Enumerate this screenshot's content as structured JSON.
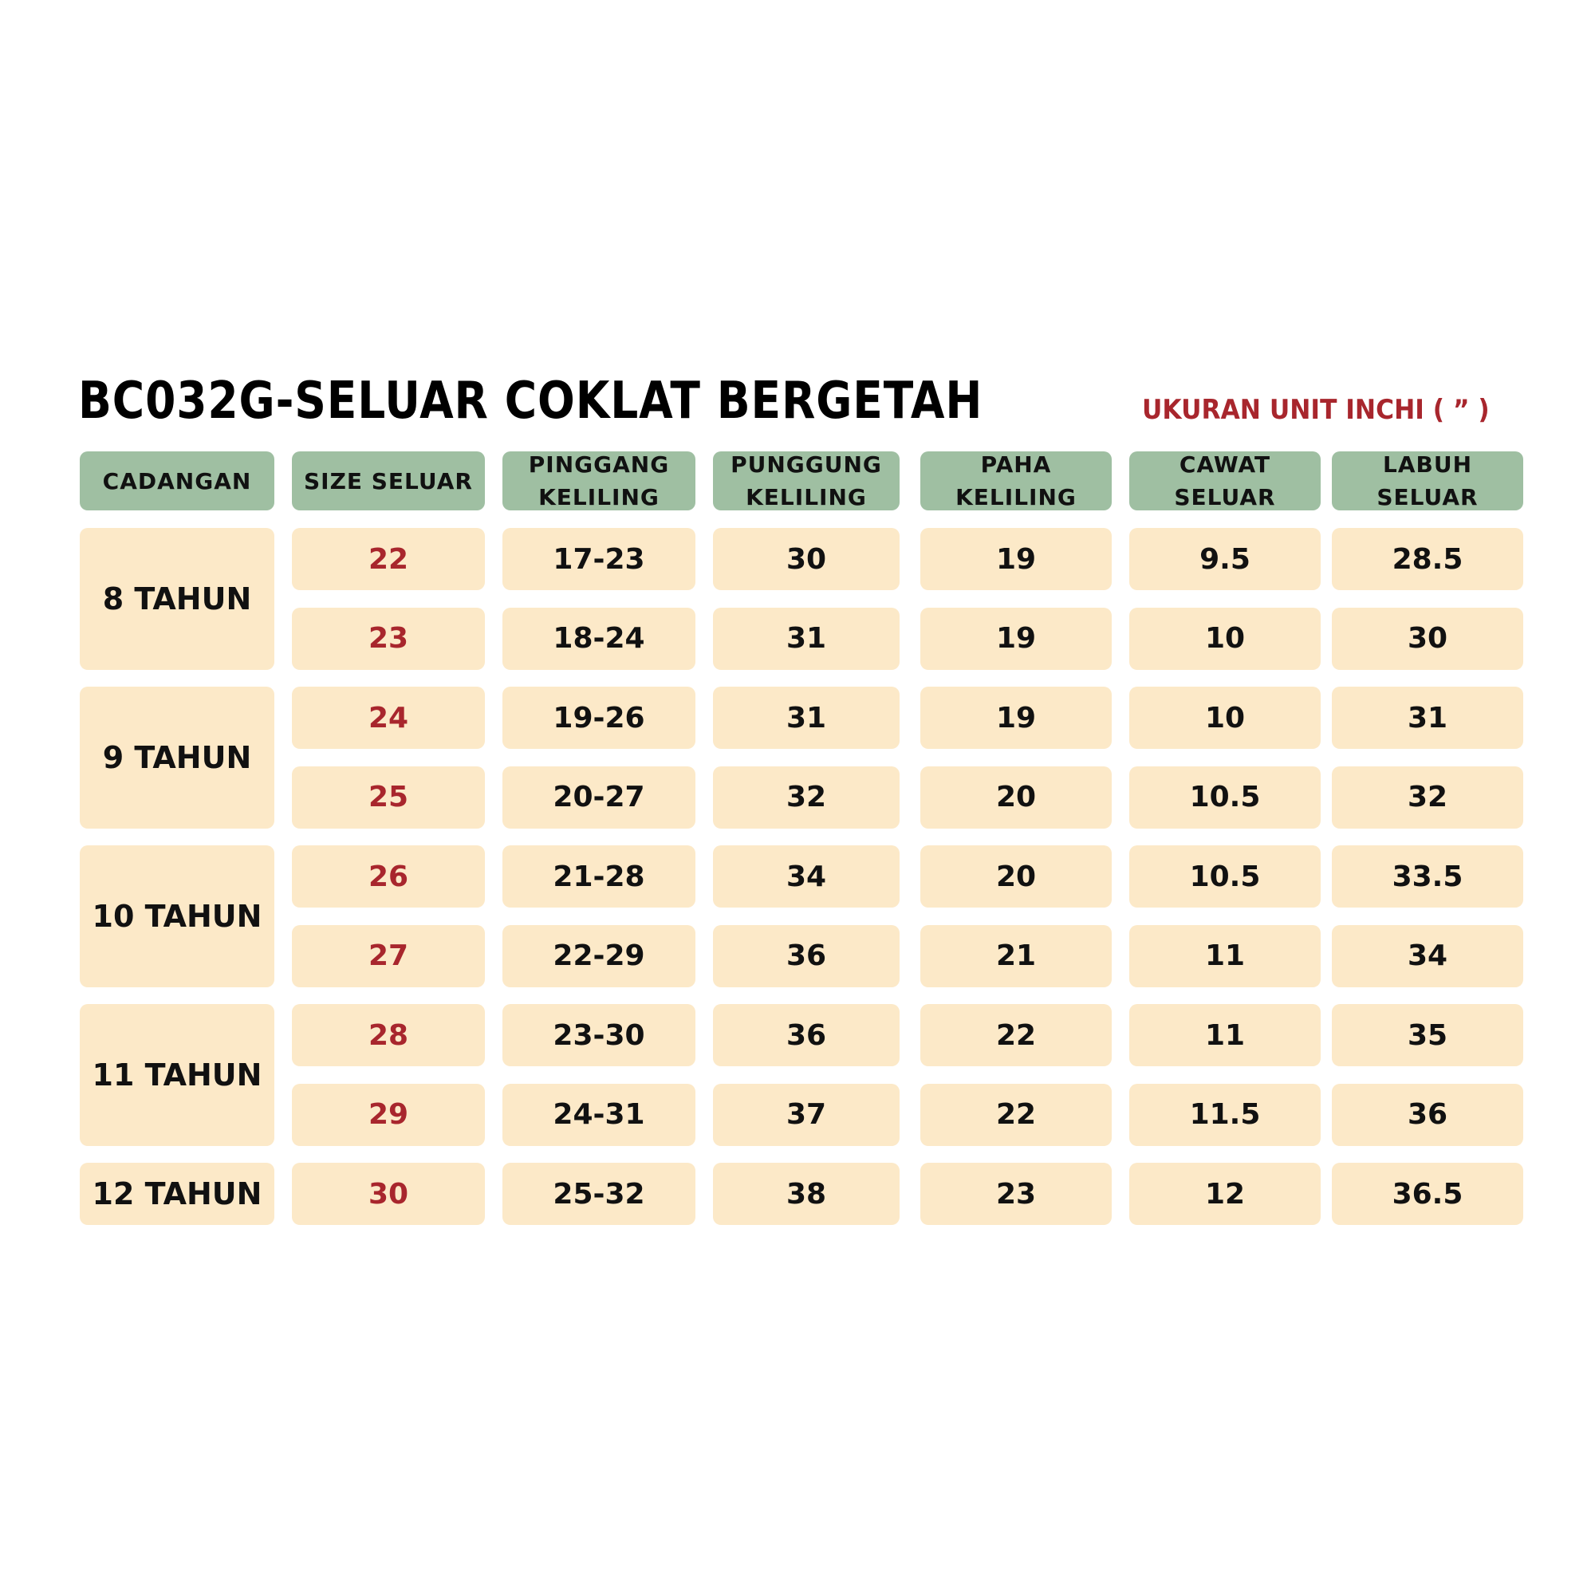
{
  "title": "BC032G-SELUAR COKLAT BERGETAH",
  "unit_note": "UKURAN UNIT INCHI ( ” )",
  "headers": [
    [
      "CADANGAN"
    ],
    [
      "SIZE SELUAR"
    ],
    [
      "PINGGANG",
      "KELILING"
    ],
    [
      "PUNGGUNG",
      "KELILING"
    ],
    [
      "PAHA",
      "KELILING"
    ],
    [
      "CAWAT",
      "SELUAR"
    ],
    [
      "LABUH",
      "SELUAR"
    ]
  ],
  "groups": [
    {
      "label": "8 TAHUN",
      "rows": 2
    },
    {
      "label": "9 TAHUN",
      "rows": 2
    },
    {
      "label": "10 TAHUN",
      "rows": 2
    },
    {
      "label": "11 TAHUN",
      "rows": 2
    },
    {
      "label": "12 TAHUN",
      "rows": 1
    }
  ],
  "rows": [
    {
      "size": "22",
      "pinggang": "17-23",
      "punggung": "30",
      "paha": "19",
      "cawat": "9.5",
      "labuh": "28.5"
    },
    {
      "size": "23",
      "pinggang": "18-24",
      "punggung": "31",
      "paha": "19",
      "cawat": "10",
      "labuh": "30"
    },
    {
      "size": "24",
      "pinggang": "19-26",
      "punggung": "31",
      "paha": "19",
      "cawat": "10",
      "labuh": "31"
    },
    {
      "size": "25",
      "pinggang": "20-27",
      "punggung": "32",
      "paha": "20",
      "cawat": "10.5",
      "labuh": "32"
    },
    {
      "size": "26",
      "pinggang": "21-28",
      "punggung": "34",
      "paha": "20",
      "cawat": "10.5",
      "labuh": "33.5"
    },
    {
      "size": "27",
      "pinggang": "22-29",
      "punggung": "36",
      "paha": "21",
      "cawat": "11",
      "labuh": "34"
    },
    {
      "size": "28",
      "pinggang": "23-30",
      "punggung": "36",
      "paha": "22",
      "cawat": "11",
      "labuh": "35"
    },
    {
      "size": "29",
      "pinggang": "24-31",
      "punggung": "37",
      "paha": "22",
      "cawat": "11.5",
      "labuh": "36"
    },
    {
      "size": "30",
      "pinggang": "25-32",
      "punggung": "38",
      "paha": "23",
      "cawat": "12",
      "labuh": "36.5"
    }
  ],
  "colors": {
    "header_bg": "#9fbfa2",
    "cell_bg": "#fce9c8",
    "accent_red": "#a8262d"
  }
}
